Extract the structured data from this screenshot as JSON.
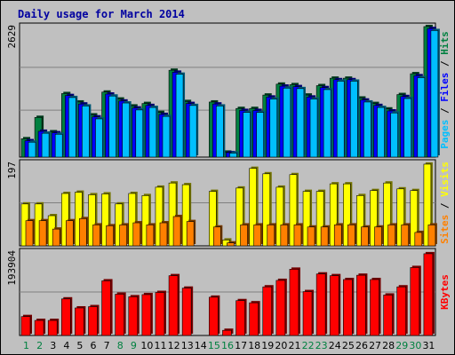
{
  "chart_data": {
    "type": "bar",
    "title": "Daily usage for March 2014",
    "categories": [
      "1",
      "2",
      "3",
      "4",
      "5",
      "6",
      "7",
      "8",
      "9",
      "10",
      "11",
      "12",
      "13",
      "14",
      "15",
      "16",
      "17",
      "18",
      "19",
      "20",
      "21",
      "22",
      "23",
      "24",
      "25",
      "26",
      "27",
      "28",
      "29",
      "30",
      "31"
    ],
    "weekend_days": [
      "1",
      "2",
      "8",
      "9",
      "15",
      "16",
      "22",
      "23",
      "29",
      "30"
    ],
    "panels": [
      {
        "id": "hits-files",
        "max_label": "2629",
        "ymax": 2629,
        "legend": [
          {
            "text": "Pages",
            "color": "#00bfff"
          },
          {
            "text": " / ",
            "color": "#000000"
          },
          {
            "text": "Files",
            "color": "#0000ff"
          },
          {
            "text": " / ",
            "color": "#000000"
          },
          {
            "text": "Hits",
            "color": "#008040"
          }
        ],
        "series": [
          {
            "name": "Hits",
            "color": "#008040",
            "values": [
              370,
              800,
              510,
              1280,
              1110,
              850,
              1310,
              1170,
              1030,
              1080,
              900,
              1750,
              1120,
              0,
              1110,
              100,
              980,
              980,
              1250,
              1470,
              1460,
              1250,
              1440,
              1590,
              1590,
              1190,
              1080,
              970,
              1260,
              1680,
              2630
            ]
          },
          {
            "name": "Files",
            "color": "#0000ff",
            "values": [
              330,
              520,
              490,
              1240,
              1070,
              810,
              1270,
              1130,
              990,
              1040,
              860,
              1710,
              1080,
              0,
              1070,
              90,
              940,
              940,
              1210,
              1430,
              1420,
              1210,
              1400,
              1560,
              1560,
              1150,
              1040,
              930,
              1220,
              1640,
              2590
            ]
          },
          {
            "name": "Pages",
            "color": "#00bfff",
            "values": [
              300,
              480,
              460,
              1200,
              1030,
              770,
              1230,
              1090,
              950,
              1000,
              820,
              1670,
              1040,
              0,
              1030,
              80,
              900,
              900,
              1170,
              1390,
              1380,
              1170,
              1360,
              1530,
              1530,
              1110,
              1000,
              890,
              1180,
              1600,
              2550
            ]
          }
        ]
      },
      {
        "id": "visits-sites",
        "max_label": "197",
        "ymax": 197,
        "legend": [
          {
            "text": "Sites",
            "color": "#ff8000"
          },
          {
            "text": " / ",
            "color": "#000000"
          },
          {
            "text": "Visits",
            "color": "#ffff00"
          }
        ],
        "series": [
          {
            "name": "Visits",
            "color": "#ffff00",
            "values": [
              100,
              100,
              72,
              125,
              128,
              122,
              124,
              100,
              125,
              120,
              140,
              150,
              146,
              0,
              130,
              14,
              138,
              185,
              172,
              140,
              170,
              130,
              130,
              148,
              148,
              120,
              132,
              150,
              136,
              132,
              195
            ]
          },
          {
            "name": "Sites",
            "color": "#ff8000",
            "values": [
              60,
              60,
              40,
              60,
              65,
              50,
              48,
              50,
              55,
              50,
              55,
              70,
              58,
              0,
              45,
              7,
              50,
              50,
              50,
              50,
              50,
              45,
              45,
              50,
              50,
              45,
              45,
              50,
              50,
              32,
              50
            ]
          }
        ]
      },
      {
        "id": "kbytes",
        "max_label": "193904",
        "ymax": 193904,
        "legend": [
          {
            "text": "KBytes",
            "color": "#ff0000"
          }
        ],
        "series": [
          {
            "name": "KBytes",
            "color": "#ff0000",
            "values": [
              44000,
              35000,
              35000,
              85000,
              64000,
              67000,
              127000,
              96000,
              90000,
              95000,
              100000,
              139000,
              110000,
              0,
              89000,
              12000,
              81000,
              76000,
              113000,
              128000,
              154000,
              102000,
              143000,
              139000,
              130000,
              140000,
              130000,
              94000,
              113000,
              158000,
              190000
            ]
          }
        ]
      }
    ]
  }
}
